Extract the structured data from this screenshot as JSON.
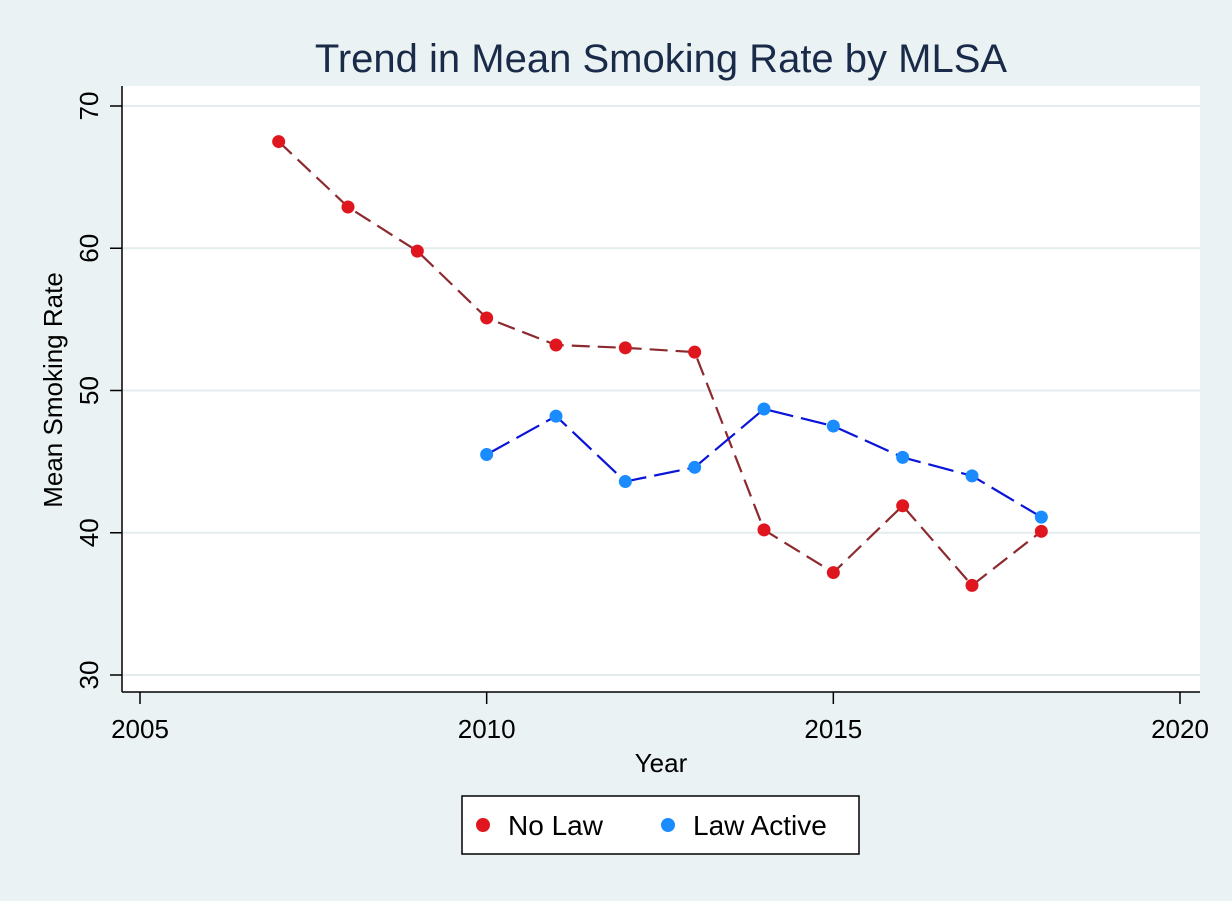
{
  "chart_data": {
    "type": "line",
    "title": "Trend in Mean Smoking Rate by MLSA",
    "xlabel": "Year",
    "ylabel": "Mean Smoking Rate",
    "xlim": [
      2005,
      2020
    ],
    "ylim": [
      30,
      70
    ],
    "xticks": [
      2005,
      2010,
      2015,
      2020
    ],
    "yticks": [
      30,
      40,
      50,
      60,
      70
    ],
    "grid": true,
    "legend_position": "bottom",
    "series": [
      {
        "name": "No Law",
        "color_marker": "#e0161f",
        "color_line": "#8c2a2f",
        "x": [
          2007,
          2008,
          2009,
          2010,
          2011,
          2012,
          2013,
          2014,
          2015,
          2016,
          2017,
          2018
        ],
        "y": [
          67.5,
          62.9,
          59.8,
          55.1,
          53.2,
          53.0,
          52.7,
          40.2,
          37.2,
          41.9,
          36.3,
          40.1
        ]
      },
      {
        "name": "Law Active",
        "color_marker": "#1a8cff",
        "color_line": "#0a14d8",
        "x": [
          2010,
          2011,
          2012,
          2013,
          2014,
          2015,
          2016,
          2017,
          2018
        ],
        "y": [
          45.5,
          48.2,
          43.6,
          44.6,
          48.7,
          47.5,
          45.3,
          44.0,
          41.1
        ]
      }
    ]
  }
}
